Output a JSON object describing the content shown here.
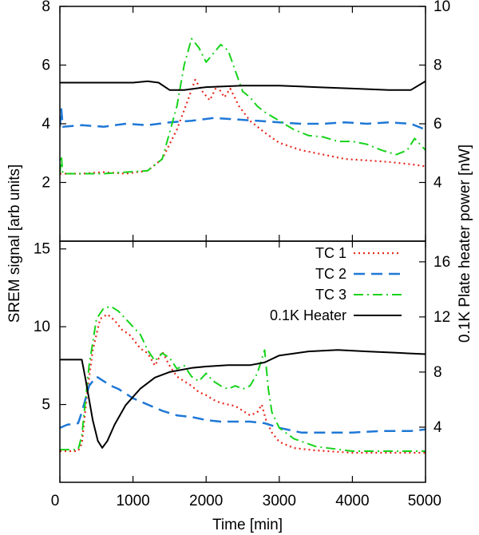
{
  "chart_data": {
    "type": "line",
    "x_label": "Time [min]",
    "x_range": [
      0,
      5000
    ],
    "x_ticks": [
      "0",
      "1000",
      "2000",
      "3000",
      "4000",
      "5000"
    ],
    "y_left_label": "SREM signal [arb units]",
    "y_right_label": "0.1K Plate heater power [nW]",
    "legend": [
      {
        "name": "TC 1",
        "color": "#e8281e",
        "style": "dotted"
      },
      {
        "name": "TC 2",
        "color": "#1f78d6",
        "style": "dashed"
      },
      {
        "name": "TC 3",
        "color": "#16d31a",
        "style": "dashdot"
      },
      {
        "name": "0.1K Heater",
        "color": "#000000",
        "style": "solid"
      }
    ],
    "panels": [
      {
        "name": "top",
        "y_left_range": [
          0,
          8
        ],
        "y_left_ticks": [
          "8",
          "6",
          "4",
          "2"
        ],
        "y_right_range": [
          2,
          10
        ],
        "y_right_ticks": [
          "10",
          "8",
          "6",
          "4"
        ],
        "series": {
          "TC 1": [
            [
              0,
              2.3
            ],
            [
              300,
              2.3
            ],
            [
              600,
              2.35
            ],
            [
              900,
              2.3
            ],
            [
              1200,
              2.4
            ],
            [
              1400,
              2.8
            ],
            [
              1600,
              3.8
            ],
            [
              1750,
              4.8
            ],
            [
              1850,
              5.5
            ],
            [
              1950,
              5.1
            ],
            [
              2050,
              4.8
            ],
            [
              2150,
              5.3
            ],
            [
              2250,
              4.9
            ],
            [
              2330,
              5.2
            ],
            [
              2450,
              4.6
            ],
            [
              2600,
              4.1
            ],
            [
              2800,
              3.7
            ],
            [
              3000,
              3.35
            ],
            [
              3300,
              3.1
            ],
            [
              3600,
              2.95
            ],
            [
              3900,
              2.8
            ],
            [
              4200,
              2.75
            ],
            [
              4500,
              2.7
            ],
            [
              4800,
              2.62
            ],
            [
              5000,
              2.55
            ]
          ],
          "TC 2": [
            [
              0,
              3.9
            ],
            [
              20,
              4.5
            ],
            [
              40,
              3.9
            ],
            [
              300,
              3.95
            ],
            [
              600,
              3.9
            ],
            [
              900,
              4.0
            ],
            [
              1200,
              3.95
            ],
            [
              1500,
              4.05
            ],
            [
              1800,
              4.1
            ],
            [
              2100,
              4.2
            ],
            [
              2400,
              4.15
            ],
            [
              2700,
              4.1
            ],
            [
              3000,
              4.05
            ],
            [
              3300,
              4.0
            ],
            [
              3600,
              4.0
            ],
            [
              3900,
              4.05
            ],
            [
              4200,
              4.0
            ],
            [
              4500,
              4.05
            ],
            [
              4800,
              4.0
            ],
            [
              5000,
              3.8
            ]
          ],
          "TC 3": [
            [
              0,
              2.3
            ],
            [
              20,
              2.9
            ],
            [
              40,
              2.3
            ],
            [
              300,
              2.3
            ],
            [
              600,
              2.3
            ],
            [
              900,
              2.35
            ],
            [
              1200,
              2.4
            ],
            [
              1400,
              2.8
            ],
            [
              1600,
              4.6
            ],
            [
              1700,
              6.0
            ],
            [
              1800,
              6.9
            ],
            [
              1900,
              6.6
            ],
            [
              2000,
              6.1
            ],
            [
              2100,
              6.4
            ],
            [
              2200,
              6.7
            ],
            [
              2300,
              6.5
            ],
            [
              2400,
              5.8
            ],
            [
              2500,
              5.1
            ],
            [
              2600,
              4.9
            ],
            [
              2700,
              4.6
            ],
            [
              2800,
              4.4
            ],
            [
              3000,
              4.1
            ],
            [
              3200,
              3.8
            ],
            [
              3400,
              3.6
            ],
            [
              3600,
              3.55
            ],
            [
              3800,
              3.4
            ],
            [
              4000,
              3.4
            ],
            [
              4200,
              3.3
            ],
            [
              4400,
              3.1
            ],
            [
              4600,
              2.95
            ],
            [
              4750,
              3.1
            ],
            [
              4850,
              3.5
            ],
            [
              5000,
              3.1
            ]
          ],
          "0.1K Heater": [
            [
              0,
              7.4
            ],
            [
              1000,
              7.4
            ],
            [
              1200,
              7.45
            ],
            [
              1350,
              7.4
            ],
            [
              1500,
              7.15
            ],
            [
              1700,
              7.15
            ],
            [
              2000,
              7.25
            ],
            [
              2500,
              7.3
            ],
            [
              3000,
              7.3
            ],
            [
              3500,
              7.25
            ],
            [
              4000,
              7.2
            ],
            [
              4500,
              7.15
            ],
            [
              4800,
              7.15
            ],
            [
              5000,
              7.45
            ]
          ]
        }
      },
      {
        "name": "bottom",
        "y_left_range": [
          0,
          15.5
        ],
        "y_left_ticks": [
          "15",
          "10",
          "5"
        ],
        "y_right_range": [
          0,
          17.5
        ],
        "y_right_ticks": [
          "16",
          "12",
          "8",
          "4"
        ],
        "series": {
          "TC 1": [
            [
              0,
              2.0
            ],
            [
              250,
              2.0
            ],
            [
              300,
              2.5
            ],
            [
              380,
              6.0
            ],
            [
              450,
              8.5
            ],
            [
              550,
              10.5
            ],
            [
              650,
              10.8
            ],
            [
              750,
              10.4
            ],
            [
              850,
              9.8
            ],
            [
              950,
              9.5
            ],
            [
              1100,
              8.6
            ],
            [
              1200,
              8.3
            ],
            [
              1300,
              7.5
            ],
            [
              1400,
              8.4
            ],
            [
              1500,
              7.5
            ],
            [
              1600,
              6.8
            ],
            [
              1700,
              6.5
            ],
            [
              1800,
              6.2
            ],
            [
              1900,
              5.8
            ],
            [
              2000,
              5.6
            ],
            [
              2100,
              5.3
            ],
            [
              2200,
              5.1
            ],
            [
              2300,
              5.0
            ],
            [
              2400,
              4.9
            ],
            [
              2500,
              4.6
            ],
            [
              2600,
              4.3
            ],
            [
              2700,
              4.5
            ],
            [
              2760,
              5.0
            ],
            [
              2820,
              4.0
            ],
            [
              2900,
              3.2
            ],
            [
              3000,
              2.6
            ],
            [
              3200,
              2.2
            ],
            [
              3500,
              2.05
            ],
            [
              4000,
              1.9
            ],
            [
              4500,
              1.9
            ],
            [
              5000,
              1.9
            ]
          ],
          "TC 2": [
            [
              0,
              3.5
            ],
            [
              100,
              3.7
            ],
            [
              250,
              3.8
            ],
            [
              300,
              4.5
            ],
            [
              400,
              6.2
            ],
            [
              500,
              6.8
            ],
            [
              600,
              6.5
            ],
            [
              700,
              6.2
            ],
            [
              800,
              6.0
            ],
            [
              900,
              5.7
            ],
            [
              1000,
              5.4
            ],
            [
              1100,
              5.2
            ],
            [
              1200,
              5.0
            ],
            [
              1400,
              4.6
            ],
            [
              1600,
              4.3
            ],
            [
              1800,
              4.2
            ],
            [
              2000,
              4.0
            ],
            [
              2200,
              3.9
            ],
            [
              2400,
              3.9
            ],
            [
              2600,
              3.9
            ],
            [
              2800,
              3.8
            ],
            [
              3000,
              3.5
            ],
            [
              3300,
              3.2
            ],
            [
              3600,
              3.2
            ],
            [
              4000,
              3.2
            ],
            [
              4400,
              3.3
            ],
            [
              4800,
              3.3
            ],
            [
              5000,
              3.4
            ]
          ],
          "TC 3": [
            [
              0,
              2.1
            ],
            [
              250,
              2.1
            ],
            [
              300,
              3.0
            ],
            [
              400,
              7.5
            ],
            [
              500,
              10.5
            ],
            [
              600,
              11.2
            ],
            [
              700,
              11.3
            ],
            [
              800,
              11.0
            ],
            [
              900,
              10.5
            ],
            [
              1000,
              10.0
            ],
            [
              1100,
              9.5
            ],
            [
              1200,
              8.5
            ],
            [
              1300,
              7.8
            ],
            [
              1400,
              8.3
            ],
            [
              1500,
              8.0
            ],
            [
              1600,
              7.3
            ],
            [
              1700,
              7.5
            ],
            [
              1800,
              6.8
            ],
            [
              1900,
              6.5
            ],
            [
              2000,
              7.0
            ],
            [
              2100,
              6.5
            ],
            [
              2200,
              6.2
            ],
            [
              2300,
              6.0
            ],
            [
              2400,
              6.2
            ],
            [
              2500,
              6.0
            ],
            [
              2600,
              6.2
            ],
            [
              2700,
              7.0
            ],
            [
              2800,
              8.5
            ],
            [
              2850,
              6.0
            ],
            [
              2900,
              4.5
            ],
            [
              3000,
              3.5
            ],
            [
              3200,
              2.8
            ],
            [
              3500,
              2.3
            ],
            [
              4000,
              2.0
            ],
            [
              4500,
              2.0
            ],
            [
              5000,
              2.0
            ]
          ],
          "0.1K Heater": [
            [
              0,
              8.9
            ],
            [
              300,
              8.9
            ],
            [
              350,
              7.5
            ],
            [
              450,
              4.5
            ],
            [
              520,
              3.0
            ],
            [
              580,
              2.5
            ],
            [
              650,
              3.0
            ],
            [
              750,
              4.2
            ],
            [
              900,
              5.6
            ],
            [
              1100,
              6.8
            ],
            [
              1300,
              7.6
            ],
            [
              1500,
              8.0
            ],
            [
              1800,
              8.3
            ],
            [
              2000,
              8.4
            ],
            [
              2300,
              8.5
            ],
            [
              2600,
              8.5
            ],
            [
              2800,
              8.7
            ],
            [
              3000,
              9.2
            ],
            [
              3400,
              9.5
            ],
            [
              3800,
              9.6
            ],
            [
              4200,
              9.5
            ],
            [
              4600,
              9.4
            ],
            [
              5000,
              9.3
            ]
          ]
        }
      }
    ]
  }
}
